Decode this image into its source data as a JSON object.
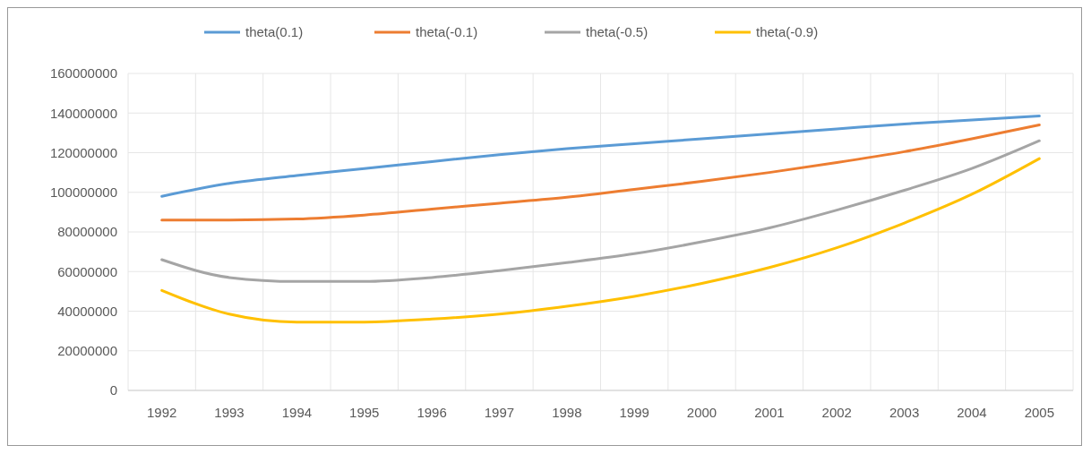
{
  "chart_data": {
    "type": "line",
    "categories": [
      "1992",
      "1993",
      "1994",
      "1995",
      "1996",
      "1997",
      "1998",
      "1999",
      "2000",
      "2001",
      "2002",
      "2003",
      "2004",
      "2005"
    ],
    "series": [
      {
        "name": "theta(0.1)",
        "color": "#5b9bd5",
        "values": [
          98000000,
          104500000,
          108500000,
          112000000,
          115500000,
          119000000,
          122000000,
          124500000,
          127000000,
          129500000,
          132000000,
          134500000,
          136500000,
          138500000
        ]
      },
      {
        "name": "theta(-0.1)",
        "color": "#ed7d31",
        "values": [
          86000000,
          86000000,
          86500000,
          88500000,
          91500000,
          94500000,
          97500000,
          101500000,
          105500000,
          110000000,
          115000000,
          120500000,
          127000000,
          134000000
        ]
      },
      {
        "name": "theta(-0.5)",
        "color": "#a5a5a5",
        "values": [
          66000000,
          57000000,
          55000000,
          55000000,
          57000000,
          60500000,
          64500000,
          69000000,
          75000000,
          82000000,
          91000000,
          101000000,
          112000000,
          126000000
        ]
      },
      {
        "name": "theta(-0.9)",
        "color": "#ffc000",
        "values": [
          50500000,
          38500000,
          34500000,
          34500000,
          36000000,
          38500000,
          42500000,
          47500000,
          54000000,
          62000000,
          72000000,
          84500000,
          99000000,
          117000000
        ]
      }
    ],
    "ylim": [
      0,
      160000000
    ],
    "yticks": [
      0,
      20000000,
      40000000,
      60000000,
      80000000,
      100000000,
      120000000,
      140000000,
      160000000
    ],
    "grid": true,
    "legend": "top",
    "marker": "none",
    "line_style": "solid"
  }
}
